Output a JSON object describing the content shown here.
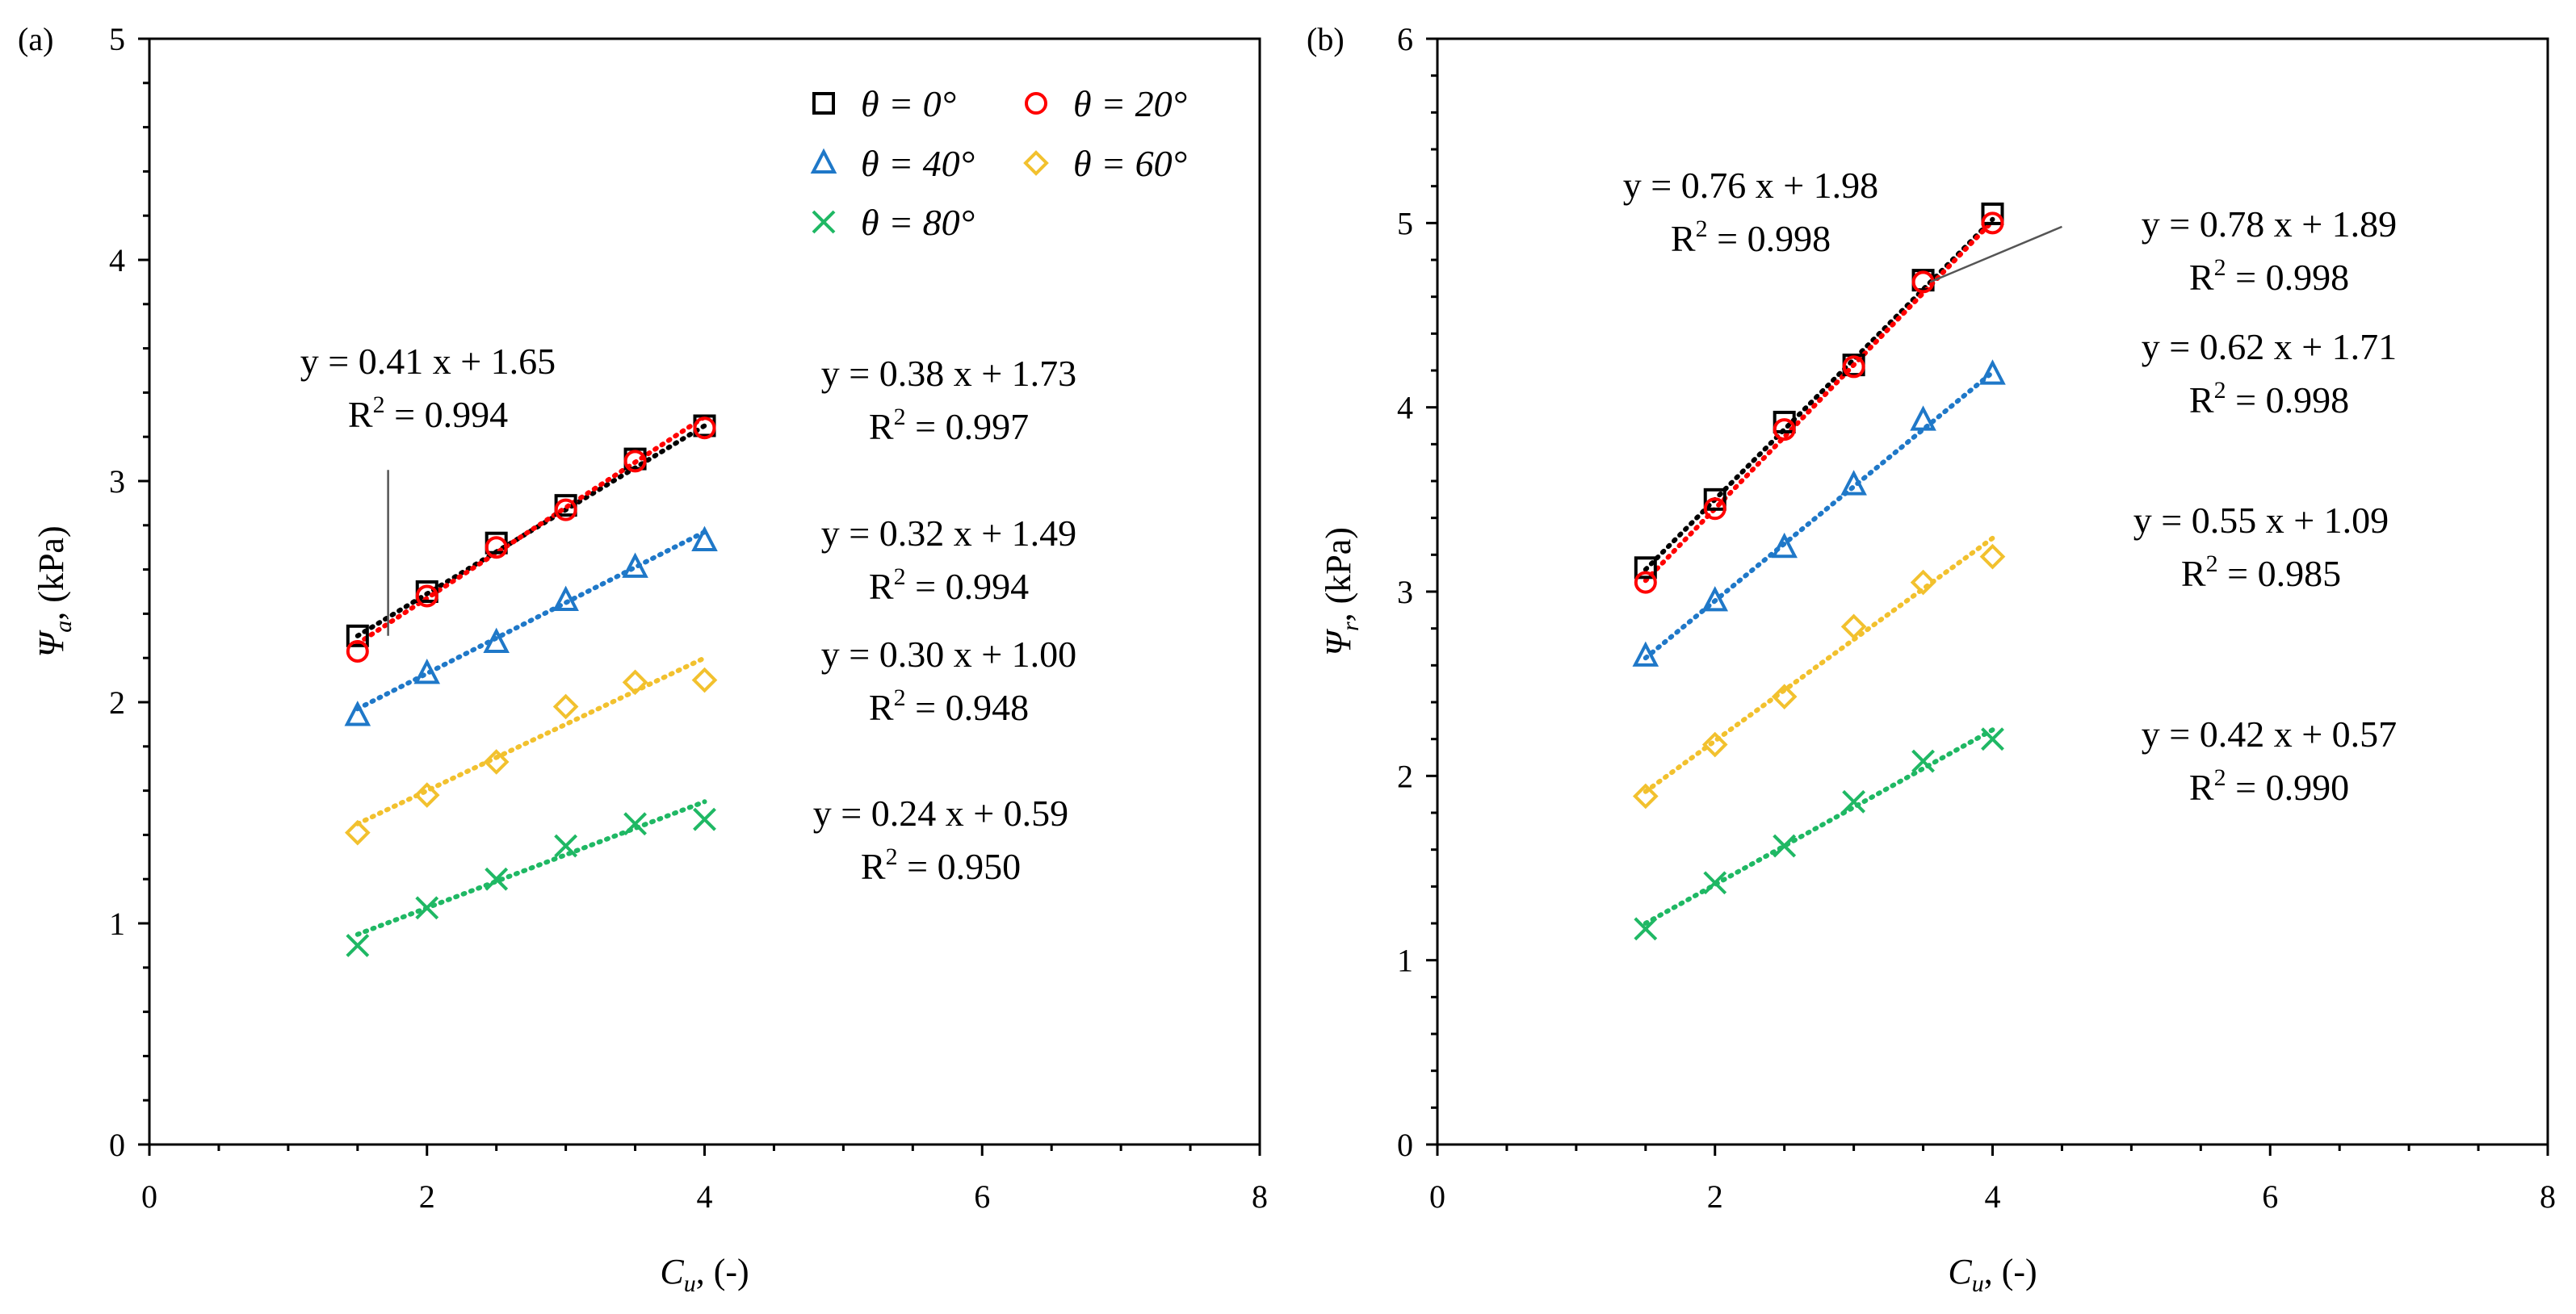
{
  "chart_data": [
    {
      "type": "scatter",
      "panel_label": "(a)",
      "xlabel": "C",
      "xlabel_sub": "u",
      "xlabel_suffix": ", (-)",
      "ylabel": "Ψ",
      "ylabel_sub": "a",
      "ylabel_suffix": ", (kPa)",
      "xlim": [
        0,
        8
      ],
      "ylim": [
        0,
        5
      ],
      "xticks": [
        0,
        2,
        4,
        6,
        8
      ],
      "yticks": [
        0,
        1,
        2,
        3,
        4,
        5
      ],
      "legend": {
        "placement": "top-right",
        "entries": [
          {
            "series": 0,
            "text": "θ = 0°"
          },
          {
            "series": 1,
            "text": "θ = 20°"
          },
          {
            "series": 2,
            "text": "θ = 40°"
          },
          {
            "series": 3,
            "text": "θ = 60°"
          },
          {
            "series": 4,
            "text": "θ = 80°"
          }
        ]
      },
      "series": [
        {
          "name": "θ = 0°",
          "marker": "square",
          "color": "#000000",
          "x": [
            1.5,
            2.0,
            2.5,
            3.0,
            3.5,
            4.0
          ],
          "y": [
            2.3,
            2.5,
            2.72,
            2.89,
            3.1,
            3.25
          ],
          "fit": {
            "slope": 0.38,
            "intercept": 1.73
          }
        },
        {
          "name": "θ = 20°",
          "marker": "circle",
          "color": "#ff0000",
          "x": [
            1.5,
            2.0,
            2.5,
            3.0,
            3.5,
            4.0
          ],
          "y": [
            2.23,
            2.48,
            2.7,
            2.87,
            3.09,
            3.24
          ],
          "fit": {
            "slope": 0.41,
            "intercept": 1.65
          }
        },
        {
          "name": "θ = 40°",
          "marker": "triangle",
          "color": "#1f78c8",
          "x": [
            1.5,
            2.0,
            2.5,
            3.0,
            3.5,
            4.0
          ],
          "y": [
            1.94,
            2.13,
            2.27,
            2.46,
            2.61,
            2.73
          ],
          "fit": {
            "slope": 0.32,
            "intercept": 1.49
          }
        },
        {
          "name": "θ = 60°",
          "marker": "diamond",
          "color": "#f2c12e",
          "x": [
            1.5,
            2.0,
            2.5,
            3.0,
            3.5,
            4.0
          ],
          "y": [
            1.41,
            1.58,
            1.73,
            1.98,
            2.09,
            2.1
          ],
          "fit": {
            "slope": 0.3,
            "intercept": 1.0
          }
        },
        {
          "name": "θ = 80°",
          "marker": "x",
          "color": "#1fb864",
          "x": [
            1.5,
            2.0,
            2.5,
            3.0,
            3.5,
            4.0
          ],
          "y": [
            0.9,
            1.07,
            1.2,
            1.35,
            1.45,
            1.47
          ],
          "fit": {
            "slope": 0.24,
            "intercept": 0.59
          }
        }
      ],
      "annotations": [
        {
          "eq": "y = 0.41 x + 1.65",
          "r2": "0.994",
          "pointer": {
            "from_data": [
              1.72,
              3.05
            ],
            "to_data": [
              1.72,
              2.3
            ]
          }
        },
        {
          "eq": "y = 0.38 x + 1.73",
          "r2": "0.997"
        },
        {
          "eq": "y = 0.32 x + 1.49",
          "r2": "0.994"
        },
        {
          "eq": "y = 0.30 x + 1.00",
          "r2": "0.948"
        },
        {
          "eq": "y = 0.24 x + 0.59",
          "r2": "0.950"
        }
      ]
    },
    {
      "type": "scatter",
      "panel_label": "(b)",
      "xlabel": "C",
      "xlabel_sub": "u",
      "xlabel_suffix": ", (-)",
      "ylabel": "Ψ",
      "ylabel_sub": "r",
      "ylabel_suffix": ", (kPa)",
      "xlim": [
        0,
        8
      ],
      "ylim": [
        0,
        6
      ],
      "xticks": [
        0,
        2,
        4,
        6,
        8
      ],
      "yticks": [
        0,
        1,
        2,
        3,
        4,
        5,
        6
      ],
      "series": [
        {
          "name": "θ = 0°",
          "marker": "square",
          "color": "#000000",
          "x": [
            1.5,
            2.0,
            2.5,
            3.0,
            3.5,
            4.0
          ],
          "y": [
            3.13,
            3.5,
            3.92,
            4.23,
            4.69,
            5.05
          ],
          "fit": {
            "slope": 0.76,
            "intercept": 1.98
          }
        },
        {
          "name": "θ = 20°",
          "marker": "circle",
          "color": "#ff0000",
          "x": [
            1.5,
            2.0,
            2.5,
            3.0,
            3.5,
            4.0
          ],
          "y": [
            3.05,
            3.45,
            3.88,
            4.22,
            4.68,
            5.0
          ],
          "fit": {
            "slope": 0.78,
            "intercept": 1.89
          }
        },
        {
          "name": "θ = 40°",
          "marker": "triangle",
          "color": "#1f78c8",
          "x": [
            1.5,
            2.0,
            2.5,
            3.0,
            3.5,
            4.0
          ],
          "y": [
            2.65,
            2.95,
            3.24,
            3.58,
            3.93,
            4.18
          ],
          "fit": {
            "slope": 0.62,
            "intercept": 1.71
          }
        },
        {
          "name": "θ = 60°",
          "marker": "diamond",
          "color": "#f2c12e",
          "x": [
            1.5,
            2.0,
            2.5,
            3.0,
            3.5,
            4.0
          ],
          "y": [
            1.89,
            2.17,
            2.43,
            2.81,
            3.05,
            3.19
          ],
          "fit": {
            "slope": 0.55,
            "intercept": 1.09
          }
        },
        {
          "name": "θ = 80°",
          "marker": "x",
          "color": "#1fb864",
          "x": [
            1.5,
            2.0,
            2.5,
            3.0,
            3.5,
            4.0
          ],
          "y": [
            1.17,
            1.42,
            1.62,
            1.86,
            2.08,
            2.2
          ],
          "fit": {
            "slope": 0.42,
            "intercept": 0.57
          }
        }
      ],
      "annotations": [
        {
          "eq": "y = 0.76 x + 1.98",
          "r2": "0.998"
        },
        {
          "eq": "y = 0.78 x + 1.89",
          "r2": "0.998",
          "pointer": {
            "from_data": [
              4.5,
              4.98
            ],
            "to_data": [
              3.55,
              4.68
            ]
          }
        },
        {
          "eq": "y = 0.62 x + 1.71",
          "r2": "0.998"
        },
        {
          "eq": "y = 0.55 x + 1.09",
          "r2": "0.985"
        },
        {
          "eq": "y = 0.42 x + 0.57",
          "r2": "0.990"
        }
      ]
    }
  ],
  "r2_label": "R",
  "r2_sup": "2",
  "r2_joiner": " = "
}
